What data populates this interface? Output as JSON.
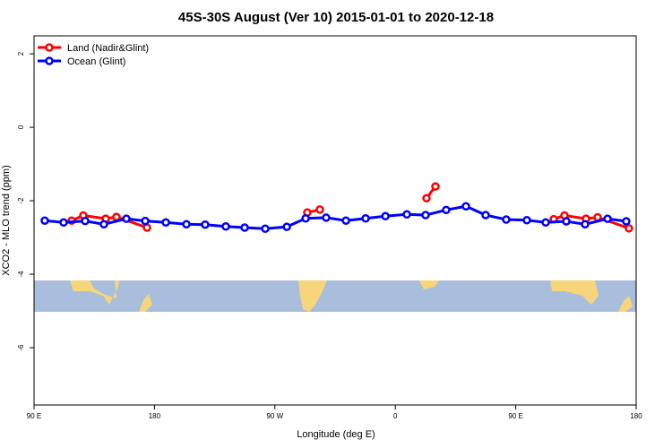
{
  "chart_data": {
    "type": "line",
    "title": "45S-30S August (Ver 10)   2015-01-01 to 2020-12-18",
    "x_label": "Longitude (deg E)",
    "y_label": "XCO2 - MLO trend (ppm)",
    "xlim": [
      90,
      540
    ],
    "ylim": [
      -7.56,
      2.49
    ],
    "xticks": [
      {
        "value": 90,
        "label": "90 E"
      },
      180,
      {
        "value": 270,
        "label": "90 W"
      },
      {
        "value": 360,
        "label": "0"
      },
      {
        "value": 450,
        "label": "90 E"
      },
      {
        "value": 540,
        "label": "180"
      }
    ],
    "yticks": [
      2,
      0,
      -2,
      -4,
      -6
    ],
    "legend": "top-left",
    "series": [
      {
        "name": "Land (Nadir&Glint)",
        "color": "#ff0000",
        "x": [
          118.1,
          126.8,
          143.6,
          151.6,
          174.4,
          null,
          294.2,
          303.6,
          null,
          383.3,
          390.0,
          null,
          478.4,
          486.4,
          502.5,
          511.2,
          534.6
        ],
        "values": [
          -2.54,
          -2.4,
          -2.49,
          -2.44,
          -2.73,
          null,
          -2.32,
          -2.24,
          null,
          -1.93,
          -1.61,
          null,
          -2.5,
          -2.4,
          -2.49,
          -2.45,
          -2.75
        ]
      },
      {
        "name": "Ocean (Glint)",
        "color": "#0000ff",
        "x": [
          98.0,
          112.1,
          128.2,
          142.2,
          159.0,
          173.1,
          188.5,
          203.9,
          217.9,
          233.3,
          247.4,
          262.8,
          278.9,
          293.0,
          308.3,
          323.1,
          337.8,
          352.6,
          368.6,
          382.6,
          398.0,
          412.8,
          427.5,
          442.9,
          458.3,
          472.4,
          487.8,
          501.8,
          518.6,
          532.6
        ],
        "values": [
          -2.54,
          -2.59,
          -2.55,
          -2.64,
          -2.49,
          -2.55,
          -2.59,
          -2.64,
          -2.65,
          -2.7,
          -2.73,
          -2.76,
          -2.71,
          -2.48,
          -2.46,
          -2.54,
          -2.48,
          -2.42,
          -2.37,
          -2.39,
          -2.25,
          -2.15,
          -2.39,
          -2.51,
          -2.53,
          -2.59,
          -2.56,
          -2.64,
          -2.49,
          -2.56
        ]
      }
    ]
  }
}
